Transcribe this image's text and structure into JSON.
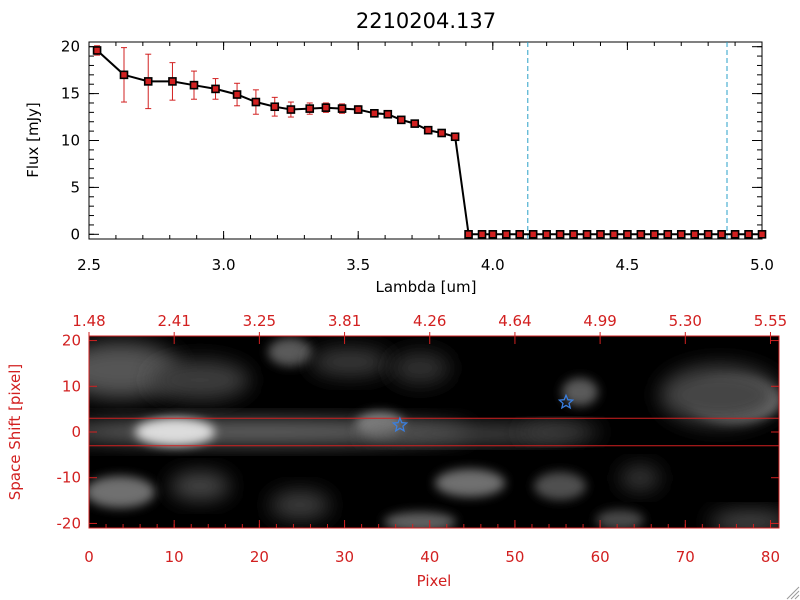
{
  "title": "2210204.137",
  "colors": {
    "black": "#000000",
    "red": "#d22020",
    "cyan": "#2aa0c8",
    "blue": "#3a7fe0"
  },
  "chart_data": [
    {
      "type": "line",
      "title": "2210204.137",
      "xlabel": "Lambda [um]",
      "ylabel": "Flux [mJy]",
      "xlim": [
        2.5,
        5.0
      ],
      "ylim": [
        -0.5,
        20.5
      ],
      "xticks": [
        "2.5",
        "3.0",
        "3.5",
        "4.0",
        "4.5",
        "5.0"
      ],
      "yticks": [
        "0",
        "5",
        "10",
        "15",
        "20"
      ],
      "vlines": [
        4.13,
        4.87
      ],
      "series": [
        {
          "x": [
            2.53,
            2.63,
            2.72,
            2.81,
            2.89,
            2.97,
            3.05,
            3.12,
            3.19,
            3.25,
            3.32,
            3.38,
            3.44,
            3.5,
            3.56,
            3.61,
            3.66,
            3.71,
            3.76,
            3.81,
            3.86,
            3.91,
            3.96,
            4.0,
            4.05,
            4.1,
            4.15,
            4.2,
            4.25,
            4.3,
            4.35,
            4.4,
            4.45,
            4.5,
            4.55,
            4.6,
            4.65,
            4.7,
            4.75,
            4.8,
            4.85,
            4.9,
            4.95,
            5.0
          ],
          "y": [
            19.6,
            17.0,
            16.3,
            16.3,
            15.9,
            15.5,
            14.9,
            14.1,
            13.6,
            13.3,
            13.4,
            13.5,
            13.4,
            13.3,
            12.9,
            12.8,
            12.2,
            11.8,
            11.1,
            10.8,
            10.4,
            0.0,
            0.0,
            0.0,
            0.0,
            0.0,
            0.0,
            0.0,
            0.0,
            0.0,
            0.0,
            0.0,
            0.0,
            0.0,
            0.0,
            0.0,
            0.0,
            0.0,
            0.0,
            0.0,
            0.0,
            0.0,
            0.0,
            0.0
          ],
          "err": [
            0.5,
            2.9,
            2.9,
            2.0,
            1.5,
            1.1,
            1.2,
            1.3,
            1.0,
            0.8,
            0.6,
            0.5,
            0.5,
            0.4,
            0.4,
            0.4,
            0.3,
            0.3,
            0.3,
            0.3,
            0.3,
            0,
            0,
            0,
            0,
            0,
            0,
            0,
            0,
            0,
            0,
            0,
            0,
            0,
            0,
            0,
            0,
            0,
            0,
            0,
            0,
            0,
            0,
            0
          ]
        }
      ]
    },
    {
      "type": "heatmap",
      "xlabel": "Pixel",
      "ylabel": "Space Shift [pixel]",
      "xlim": [
        0,
        81
      ],
      "ylim": [
        -21,
        21
      ],
      "xticks": [
        "0",
        "10",
        "20",
        "30",
        "40",
        "50",
        "60",
        "70",
        "80"
      ],
      "yticks": [
        "-20",
        "-10",
        "0",
        "10",
        "20"
      ],
      "top_ticks": [
        "1.48",
        "2.41",
        "3.25",
        "3.81",
        "4.26",
        "4.64",
        "4.99",
        "5.30",
        "5.55"
      ],
      "hlines": [
        3,
        -3
      ],
      "markers": [
        {
          "symbol": "star",
          "x": 36.5,
          "y": 1.5
        },
        {
          "symbol": "star",
          "x": 56,
          "y": 6.5
        }
      ]
    }
  ]
}
